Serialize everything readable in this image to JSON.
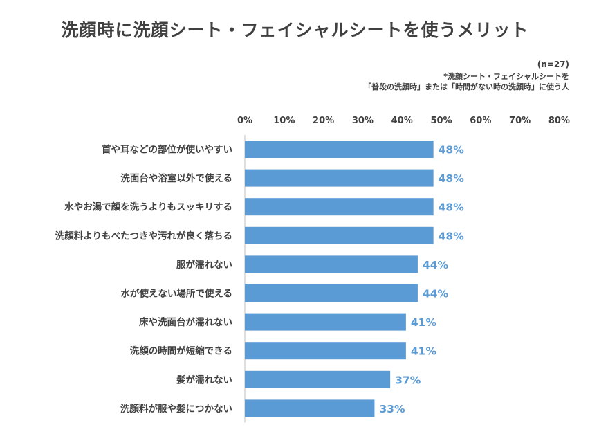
{
  "chart_data": {
    "type": "bar",
    "orientation": "horizontal",
    "title": "洗顔時に洗顔シート・フェイシャルシートを使うメリット",
    "sample_note": "(n=27)",
    "footnote_line1": "*洗顔シート・フェイシャルシートを",
    "footnote_line2": "「普段の洗顔時」または「時間がない時の洗顔時」に使う人",
    "x_ticks": [
      "0%",
      "10%",
      "20%",
      "30%",
      "40%",
      "50%",
      "60%",
      "70%",
      "80%"
    ],
    "xlim": [
      0,
      80
    ],
    "grid": false,
    "bar_color": "#5b9bd5",
    "categories": [
      "首や耳などの部位が使いやすい",
      "洗面台や浴室以外で使える",
      "水やお湯で顔を洗うよりもスッキリする",
      "洗顔料よりもべたつきや汚れが良く落ちる",
      "服が濡れない",
      "水が使えない場所で使える",
      "床や洗面台が濡れない",
      "洗顔の時間が短縮できる",
      "髪が濡れない",
      "洗顔料が服や髪につかない"
    ],
    "values": [
      48,
      48,
      48,
      48,
      44,
      44,
      41,
      41,
      37,
      33
    ],
    "data_labels": [
      "48%",
      "48%",
      "48%",
      "48%",
      "44%",
      "44%",
      "41%",
      "41%",
      "37%",
      "33%"
    ]
  }
}
